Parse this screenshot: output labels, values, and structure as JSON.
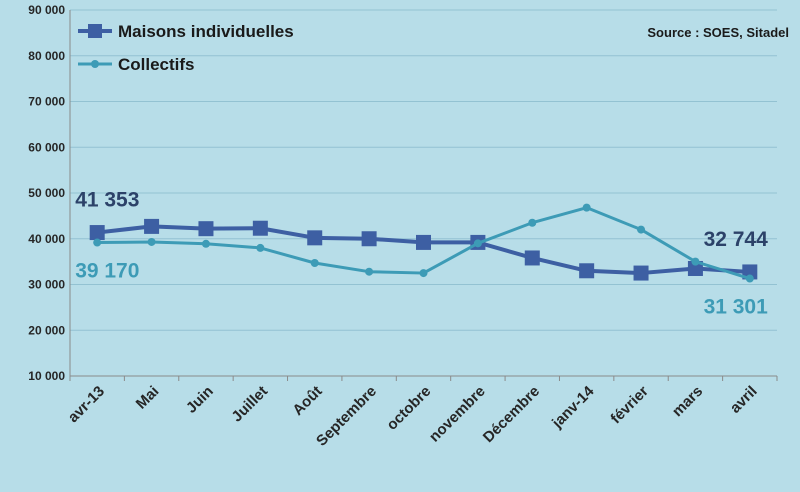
{
  "chart_data": {
    "type": "line",
    "categories": [
      "avr-13",
      "Mai",
      "Juin",
      "Juillet",
      "Août",
      "Septembre",
      "octobre",
      "novembre",
      "Décembre",
      "janv-14",
      "février",
      "mars",
      "avril"
    ],
    "series": [
      {
        "name": "Maisons individuelles",
        "color": "#3d5fa3",
        "marker": "square",
        "values": [
          41353,
          42700,
          42200,
          42300,
          40200,
          40000,
          39200,
          39200,
          35800,
          33000,
          32500,
          33500,
          32744
        ]
      },
      {
        "name": "Collectifs",
        "color": "#3d9bb6",
        "marker": "circle",
        "values": [
          39170,
          39300,
          38900,
          38000,
          34700,
          32800,
          32500,
          39000,
          43500,
          46800,
          42000,
          35000,
          31301
        ]
      }
    ],
    "yticks": [
      "10 000",
      "20 000",
      "30 000",
      "40 000",
      "50 000",
      "60 000",
      "70 000",
      "80 000",
      "90 000"
    ],
    "ylim": [
      10000,
      90000
    ],
    "grid": true,
    "legend_position": "top-left",
    "source": "Source : SOES, Sitadel",
    "annotations": [
      {
        "text": "41 353",
        "series": 0,
        "point": 0,
        "position": "above"
      },
      {
        "text": "39 170",
        "series": 1,
        "point": 0,
        "position": "below"
      },
      {
        "text": "32 744",
        "series": 0,
        "point": 12,
        "position": "above"
      },
      {
        "text": "31 301",
        "series": 1,
        "point": 12,
        "position": "below"
      }
    ]
  }
}
